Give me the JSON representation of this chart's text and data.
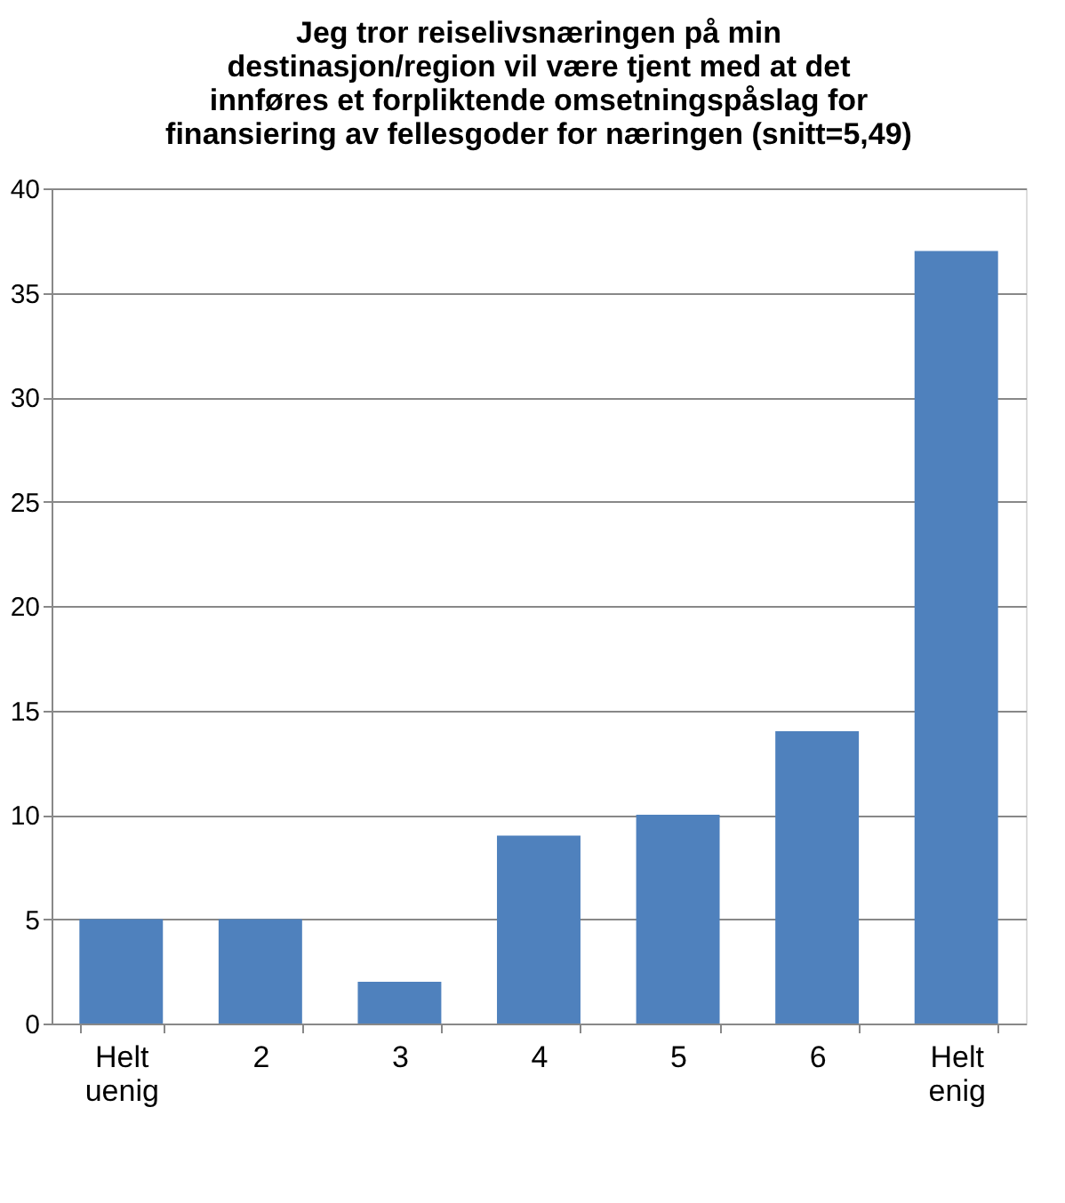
{
  "chart_data": {
    "type": "bar",
    "title": "Jeg tror reiselivsnæringen på min\ndestinasjon/region vil være tjent med at det\ninnføres et forpliktende omsetningspåslag for\nfinansiering av fellesgoder for næringen (snitt=5,49)",
    "categories": [
      "Helt uenig",
      "2",
      "3",
      "4",
      "5",
      "6",
      "Helt enig"
    ],
    "values": [
      5,
      5,
      2,
      9,
      10,
      14,
      37
    ],
    "color": "#4f81bd",
    "ylim": [
      0,
      40
    ],
    "yticks": [
      0,
      5,
      10,
      15,
      20,
      25,
      30,
      35,
      40
    ],
    "grid": "y"
  }
}
